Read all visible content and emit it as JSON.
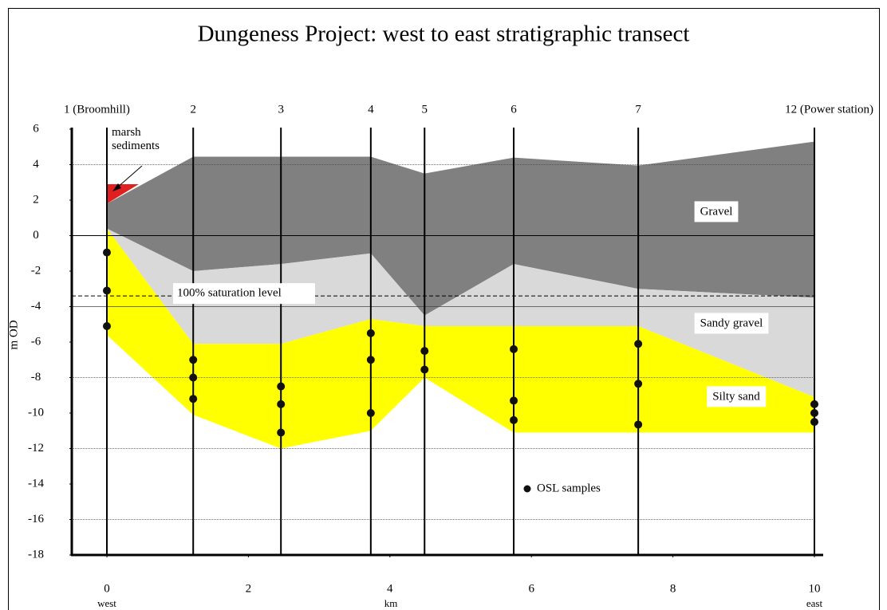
{
  "chart_data": {
    "type": "area",
    "title": "Dungeness Project: west to east stratigraphic transect",
    "ylabel": "m OD",
    "xlabel": "km",
    "x_end_labels": [
      "west",
      "east"
    ],
    "xlim": [
      0,
      10
    ],
    "xticks": [
      0,
      2,
      4,
      6,
      8,
      10
    ],
    "ylim": [
      -18,
      6
    ],
    "yticks": [
      6,
      4,
      2,
      0,
      -2,
      -4,
      -6,
      -8,
      -10,
      -12,
      -14,
      -16,
      -18
    ],
    "grid_lines": [
      4,
      0,
      -4,
      -8,
      -12,
      -16
    ],
    "boreholes": {
      "labels": [
        "1 (Broomhill)",
        "2",
        "3",
        "4",
        "5",
        "6",
        "7",
        "12  (Power station)"
      ],
      "x": [
        0,
        1.22,
        2.46,
        3.73,
        4.49,
        5.75,
        7.51,
        10
      ]
    },
    "saturation": {
      "label": "100% saturation level",
      "value": -3.4
    },
    "layers": [
      {
        "name": "Gravel",
        "color": "#808080",
        "x": [
          0,
          1.22,
          2.46,
          3.73,
          4.49,
          5.75,
          7.51,
          10
        ],
        "top": [
          1.8,
          4.45,
          4.45,
          4.45,
          3.5,
          4.4,
          3.95,
          5.3
        ],
        "bottom": [
          0.4,
          -2.0,
          -1.6,
          -1.0,
          -4.5,
          -1.6,
          -3.0,
          -3.5
        ]
      },
      {
        "name": "Sandy gravel",
        "color": "#d9d9d9",
        "x": [
          0,
          1.22,
          2.46,
          3.73,
          4.49,
          5.75,
          7.51,
          10
        ],
        "top": [
          0.4,
          -2.0,
          -1.6,
          -1.0,
          -4.5,
          -1.6,
          -3.0,
          -3.5
        ],
        "bottom": [
          0.4,
          -6.1,
          -6.1,
          -4.7,
          -5.1,
          -5.1,
          -5.1,
          -9.1
        ]
      },
      {
        "name": "Silty sand",
        "color": "#ffff00",
        "x": [
          0,
          1.22,
          2.46,
          3.73,
          4.49,
          5.75,
          7.51,
          10
        ],
        "top": [
          0.4,
          -6.1,
          -6.1,
          -4.7,
          -5.1,
          -5.1,
          -5.1,
          -9.1
        ],
        "bottom": [
          -5.6,
          -10.1,
          -12.0,
          -11.0,
          -8.0,
          -11.1,
          -11.1,
          -11.1
        ]
      },
      {
        "name": "marsh sediments",
        "color": "#e02020",
        "x": [
          0,
          0.45
        ],
        "top": [
          2.9,
          2.9
        ],
        "bottom": [
          1.8,
          2.9
        ]
      }
    ],
    "samples": {
      "name": "OSL samples",
      "color": "#111111",
      "x": [
        0,
        0,
        0,
        1.22,
        1.22,
        1.22,
        2.46,
        2.46,
        2.46,
        3.73,
        3.73,
        3.73,
        4.49,
        4.49,
        5.75,
        5.75,
        5.75,
        7.51,
        7.51,
        7.51,
        10,
        10,
        10
      ],
      "y": [
        -0.95,
        -3.1,
        -5.1,
        -7.0,
        -8.0,
        -9.2,
        -8.5,
        -9.5,
        -11.1,
        -5.5,
        -7.0,
        -10.0,
        -6.5,
        -7.55,
        -6.4,
        -9.3,
        -10.4,
        -6.1,
        -8.35,
        -10.65,
        -9.5,
        -10.0,
        -10.5
      ]
    }
  }
}
